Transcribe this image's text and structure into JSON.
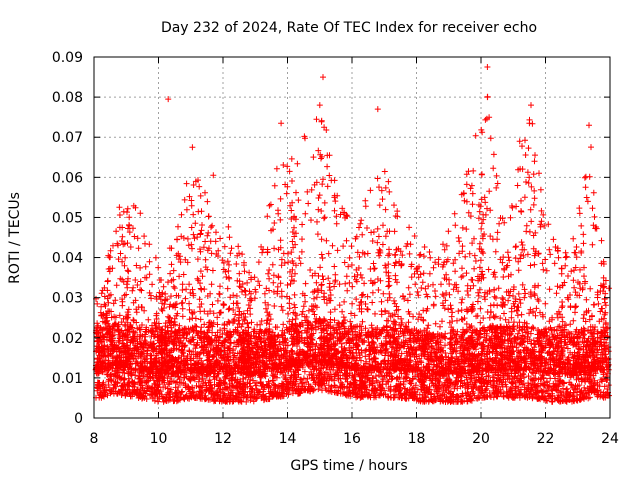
{
  "chart_data": {
    "type": "scatter",
    "title": "Day 232 of 2024, Rate Of TEC Index for receiver echo",
    "xlabel": "GPS time / hours",
    "ylabel": "ROTI / TECUs",
    "xlim": [
      8,
      24
    ],
    "ylim": [
      0,
      0.09
    ],
    "xticks": [
      8,
      10,
      12,
      14,
      16,
      18,
      20,
      22,
      24
    ],
    "yticks": [
      0,
      0.01,
      0.02,
      0.03,
      0.04,
      0.05,
      0.06,
      0.07,
      0.08,
      0.09
    ],
    "ytick_labels": [
      "0",
      "0.01",
      "0.02",
      "0.03",
      "0.04",
      "0.05",
      "0.06",
      "0.07",
      "0.08",
      "0.09"
    ],
    "grid": true,
    "marker": "+",
    "color": "#ff0000",
    "outliers": [
      {
        "x": 10.3,
        "y": 0.0795
      },
      {
        "x": 15.1,
        "y": 0.085
      },
      {
        "x": 15.0,
        "y": 0.078
      },
      {
        "x": 14.9,
        "y": 0.0745
      },
      {
        "x": 16.8,
        "y": 0.077
      },
      {
        "x": 20.2,
        "y": 0.0875
      },
      {
        "x": 20.2,
        "y": 0.08
      },
      {
        "x": 20.25,
        "y": 0.075
      },
      {
        "x": 21.55,
        "y": 0.078
      },
      {
        "x": 21.5,
        "y": 0.0735
      },
      {
        "x": 23.35,
        "y": 0.073
      },
      {
        "x": 13.8,
        "y": 0.0735
      },
      {
        "x": 11.05,
        "y": 0.0675
      },
      {
        "x": 11.7,
        "y": 0.0605
      },
      {
        "x": 21.2,
        "y": 0.069
      }
    ],
    "envelope": [
      {
        "x": 8.2,
        "base": 0.012,
        "peak": 0.03
      },
      {
        "x": 8.7,
        "base": 0.013,
        "peak": 0.052
      },
      {
        "x": 9.3,
        "base": 0.012,
        "peak": 0.056
      },
      {
        "x": 10.0,
        "base": 0.011,
        "peak": 0.038
      },
      {
        "x": 10.5,
        "base": 0.011,
        "peak": 0.045
      },
      {
        "x": 11.1,
        "base": 0.012,
        "peak": 0.067
      },
      {
        "x": 11.7,
        "base": 0.011,
        "peak": 0.05
      },
      {
        "x": 12.3,
        "base": 0.011,
        "peak": 0.047
      },
      {
        "x": 13.0,
        "base": 0.011,
        "peak": 0.035
      },
      {
        "x": 13.6,
        "base": 0.012,
        "peak": 0.063
      },
      {
        "x": 14.3,
        "base": 0.013,
        "peak": 0.066
      },
      {
        "x": 15.0,
        "base": 0.014,
        "peak": 0.083
      },
      {
        "x": 15.6,
        "base": 0.013,
        "peak": 0.054
      },
      {
        "x": 16.2,
        "base": 0.012,
        "peak": 0.05
      },
      {
        "x": 16.9,
        "base": 0.012,
        "peak": 0.065
      },
      {
        "x": 17.5,
        "base": 0.012,
        "peak": 0.05
      },
      {
        "x": 18.2,
        "base": 0.011,
        "peak": 0.046
      },
      {
        "x": 18.9,
        "base": 0.011,
        "peak": 0.045
      },
      {
        "x": 19.5,
        "base": 0.011,
        "peak": 0.059
      },
      {
        "x": 20.2,
        "base": 0.012,
        "peak": 0.086
      },
      {
        "x": 20.8,
        "base": 0.012,
        "peak": 0.047
      },
      {
        "x": 21.5,
        "base": 0.012,
        "peak": 0.078
      },
      {
        "x": 22.2,
        "base": 0.011,
        "peak": 0.045
      },
      {
        "x": 22.8,
        "base": 0.011,
        "peak": 0.042
      },
      {
        "x": 23.4,
        "base": 0.012,
        "peak": 0.073
      },
      {
        "x": 23.9,
        "base": 0.012,
        "peak": 0.039
      }
    ]
  }
}
